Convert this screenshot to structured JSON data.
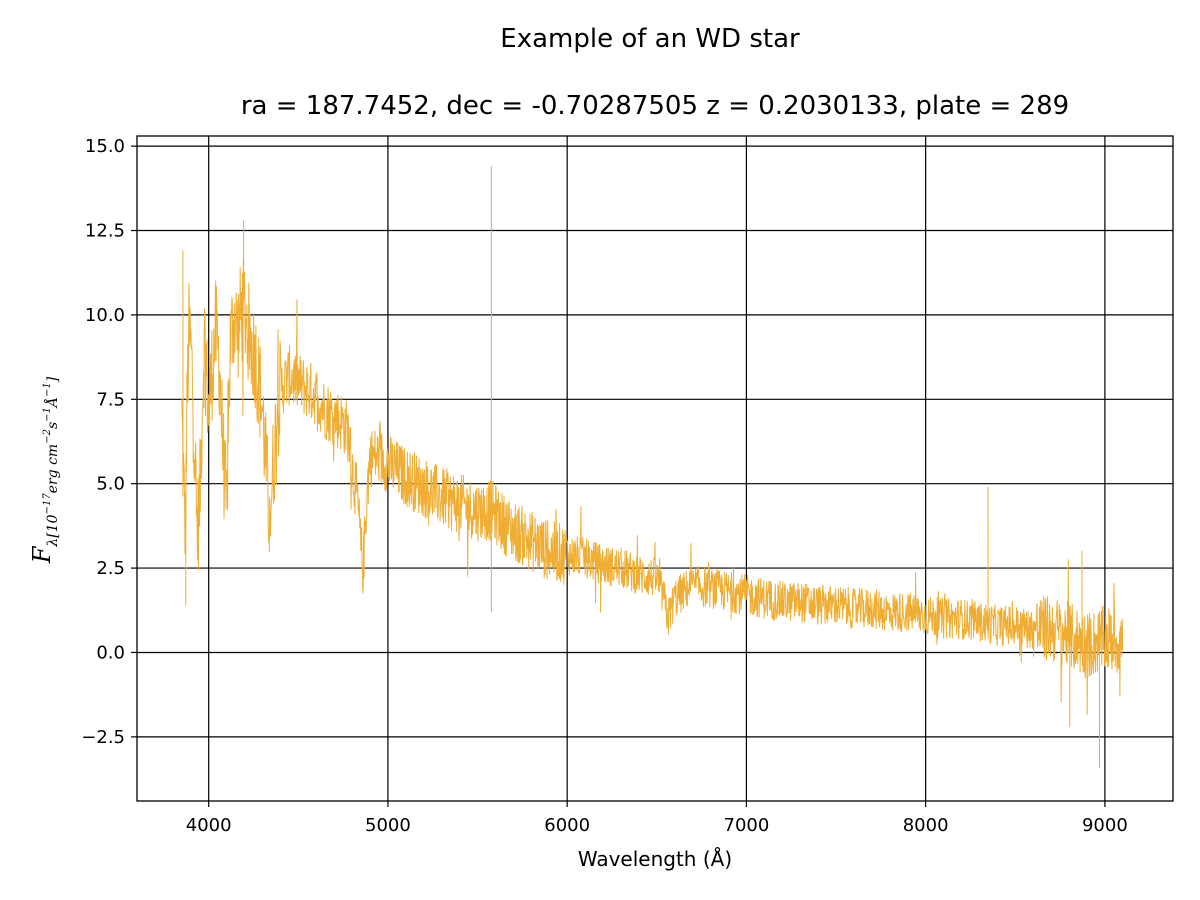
{
  "figure": {
    "suptitle": "Example of an WD star",
    "title": "ra = 187.7452, dec = -0.70287505 z = 0.2030133, plate = 289"
  },
  "chart_data": {
    "type": "line",
    "xlabel": "Wavelength (Å)",
    "ylabel": {
      "symbol": "F",
      "subscript": "λ[10",
      "exp1": "−17",
      "unit_a": "erg cm",
      "exp2": "−2",
      "unit_b": "s",
      "exp3": "−1",
      "unit_c": "Å",
      "exp4": "−1",
      "close": "]"
    },
    "xlim": [
      3600,
      9380
    ],
    "ylim": [
      -4.4,
      15.3
    ],
    "xticks": [
      4000,
      5000,
      6000,
      7000,
      8000,
      9000
    ],
    "xtick_labels": [
      "4000",
      "5000",
      "6000",
      "7000",
      "8000",
      "9000"
    ],
    "yticks": [
      -2.5,
      0.0,
      2.5,
      5.0,
      7.5,
      10.0,
      12.5,
      15.0
    ],
    "ytick_labels": [
      "−2.5",
      "0.0",
      "2.5",
      "5.0",
      "7.5",
      "10.0",
      "12.5",
      "15.0"
    ],
    "grid": true,
    "line_color": "#f0ad33",
    "series": [
      {
        "x": [
          3850,
          3860,
          3870,
          3880,
          3890,
          3900,
          3910,
          3920,
          3935,
          3950,
          3960,
          3970,
          3980,
          3990,
          4000,
          4020,
          4040,
          4060,
          4080,
          4100,
          4110,
          4120,
          4140,
          4160,
          4180,
          4200,
          4220,
          4240,
          4260,
          4280,
          4300,
          4320,
          4340,
          4360,
          4380,
          4400,
          4450,
          4500,
          4550,
          4600,
          4650,
          4700,
          4750,
          4780,
          4800,
          4830,
          4850,
          4862,
          4880,
          4900,
          4950,
          5000,
          5100,
          5200,
          5300,
          5400,
          5500,
          5580,
          5650,
          5700,
          5800,
          5900,
          6000,
          6100,
          6200,
          6300,
          6400,
          6500,
          6540,
          6563,
          6600,
          6700,
          6800,
          6900,
          7000,
          7100,
          7200,
          7300,
          7400,
          7500,
          7600,
          7700,
          7800,
          7900,
          8000,
          8100,
          8200,
          8300,
          8400,
          8500,
          8600,
          8700,
          8800,
          8900,
          9000,
          9100
        ],
        "y": [
          7.0,
          5.0,
          3.5,
          7.5,
          9.5,
          9.0,
          8.0,
          6.5,
          3.5,
          4.5,
          6.5,
          8.5,
          9.5,
          8.0,
          7.0,
          8.5,
          9.5,
          8.5,
          6.0,
          4.0,
          7.0,
          9.0,
          10.0,
          9.5,
          10.0,
          10.2,
          9.5,
          9.0,
          8.8,
          8.0,
          7.2,
          5.5,
          4.0,
          5.5,
          7.0,
          7.8,
          8.2,
          8.0,
          7.8,
          7.6,
          7.2,
          7.0,
          6.8,
          6.5,
          5.5,
          4.5,
          3.0,
          2.5,
          4.5,
          5.8,
          5.8,
          5.6,
          5.2,
          4.9,
          4.6,
          4.4,
          4.2,
          4.2,
          3.8,
          3.6,
          3.3,
          3.0,
          2.9,
          2.8,
          2.6,
          2.5,
          2.3,
          2.2,
          1.6,
          1.0,
          1.6,
          2.0,
          1.9,
          1.8,
          1.7,
          1.6,
          1.5,
          1.5,
          1.4,
          1.4,
          1.3,
          1.3,
          1.2,
          1.2,
          1.1,
          1.0,
          1.0,
          0.9,
          0.8,
          0.8,
          0.7,
          0.7,
          0.5,
          0.2,
          0.4,
          0.3
        ]
      }
    ],
    "spikes": [
      {
        "x": 3856,
        "y": 11.9
      },
      {
        "x": 3872,
        "y": 1.4
      },
      {
        "x": 4195,
        "y": 12.8
      },
      {
        "x": 5577,
        "y": 14.4
      },
      {
        "x": 5577,
        "y": 1.2
      },
      {
        "x": 8348,
        "y": 4.9
      },
      {
        "x": 8970,
        "y": -3.4
      },
      {
        "x": 8872,
        "y": 3.0
      },
      {
        "x": 8804,
        "y": -2.2
      }
    ]
  }
}
